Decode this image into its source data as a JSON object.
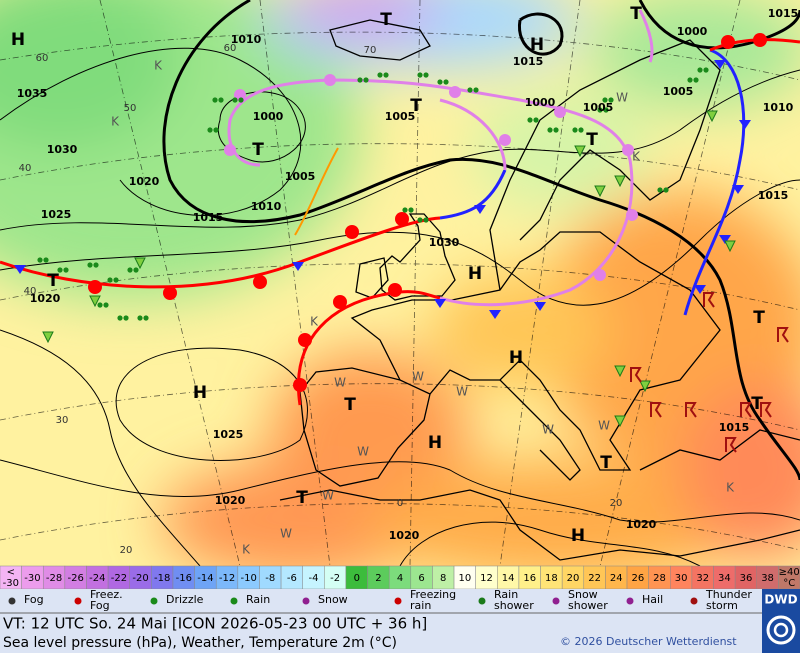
{
  "map": {
    "labels": [
      "H",
      "T",
      "T",
      "H",
      "1015",
      "1010",
      "60",
      "60",
      "1035",
      "1000",
      "1015",
      "1005",
      "1005",
      "1000",
      "T",
      "1000",
      "T",
      "T",
      "1010",
      "1005",
      "1030",
      "1020",
      "1005",
      "1015",
      "1010",
      "1025",
      "1030",
      "H",
      "1015",
      "T",
      "1020",
      "H",
      "T",
      "H",
      "1025",
      "H",
      "T",
      "1020",
      "T",
      "1015",
      "1020",
      "1020",
      "H",
      "T",
      "T",
      "50",
      "40",
      "40",
      "30",
      "20",
      "0",
      "20",
      "70",
      "K",
      "K",
      "K",
      "K",
      "K",
      "K",
      "W",
      "W",
      "W",
      "W",
      "W",
      "W",
      "W",
      "W",
      "W"
    ]
  },
  "legend": {
    "scale": [
      {
        "value": -30,
        "label": "<-30"
      },
      -30,
      -28,
      -26,
      -24,
      -22,
      -20,
      -18,
      -16,
      -14,
      -12,
      -10,
      -8,
      -6,
      -4,
      -2,
      0,
      2,
      4,
      6,
      8,
      10,
      12,
      14,
      16,
      18,
      20,
      22,
      24,
      26,
      28,
      30,
      32,
      34,
      36,
      38,
      {
        "value": 40,
        "label": "≥40 °C"
      }
    ],
    "colors": [
      "#f4b4f4",
      "#ec9cec",
      "#e08ce6",
      "#d27ee2",
      "#c270e0",
      "#b068e2",
      "#9a6ce8",
      "#8078ee",
      "#708ef2",
      "#6ea4f6",
      "#7cb8fa",
      "#8ccafe",
      "#a0daff",
      "#b4e8ff",
      "#c6f4ff",
      "#d4fff4",
      "#3cbc3c",
      "#5ccc5c",
      "#7cdc7c",
      "#9ce690",
      "#bef0a6",
      "#fffff0",
      "#ffffcc",
      "#fff8a8",
      "#fff08a",
      "#ffe476",
      "#ffd664",
      "#ffc656",
      "#ffb64c",
      "#ffa444",
      "#ff9452",
      "#ff845e",
      "#f47462",
      "#ee6c6a",
      "#e06464",
      "#d06c6c",
      "#c07868"
    ],
    "weather": [
      "Fog",
      "Freez. Fog",
      "Drizzle",
      "Rain",
      "Snow",
      "Freezing rain",
      "Rain shower",
      "Snow shower",
      "Hail",
      "Thunder storm"
    ]
  },
  "footer": {
    "line1": "VT: 12 UTC So.  24 Mai [ICON 2026-05-23  00 UTC + 36 h]",
    "line2": "Sea level pressure (hPa), Weather, Temperature 2m (°C)",
    "copyright": "© 2026 Deutscher Wetterdienst",
    "logo": "DWD"
  }
}
